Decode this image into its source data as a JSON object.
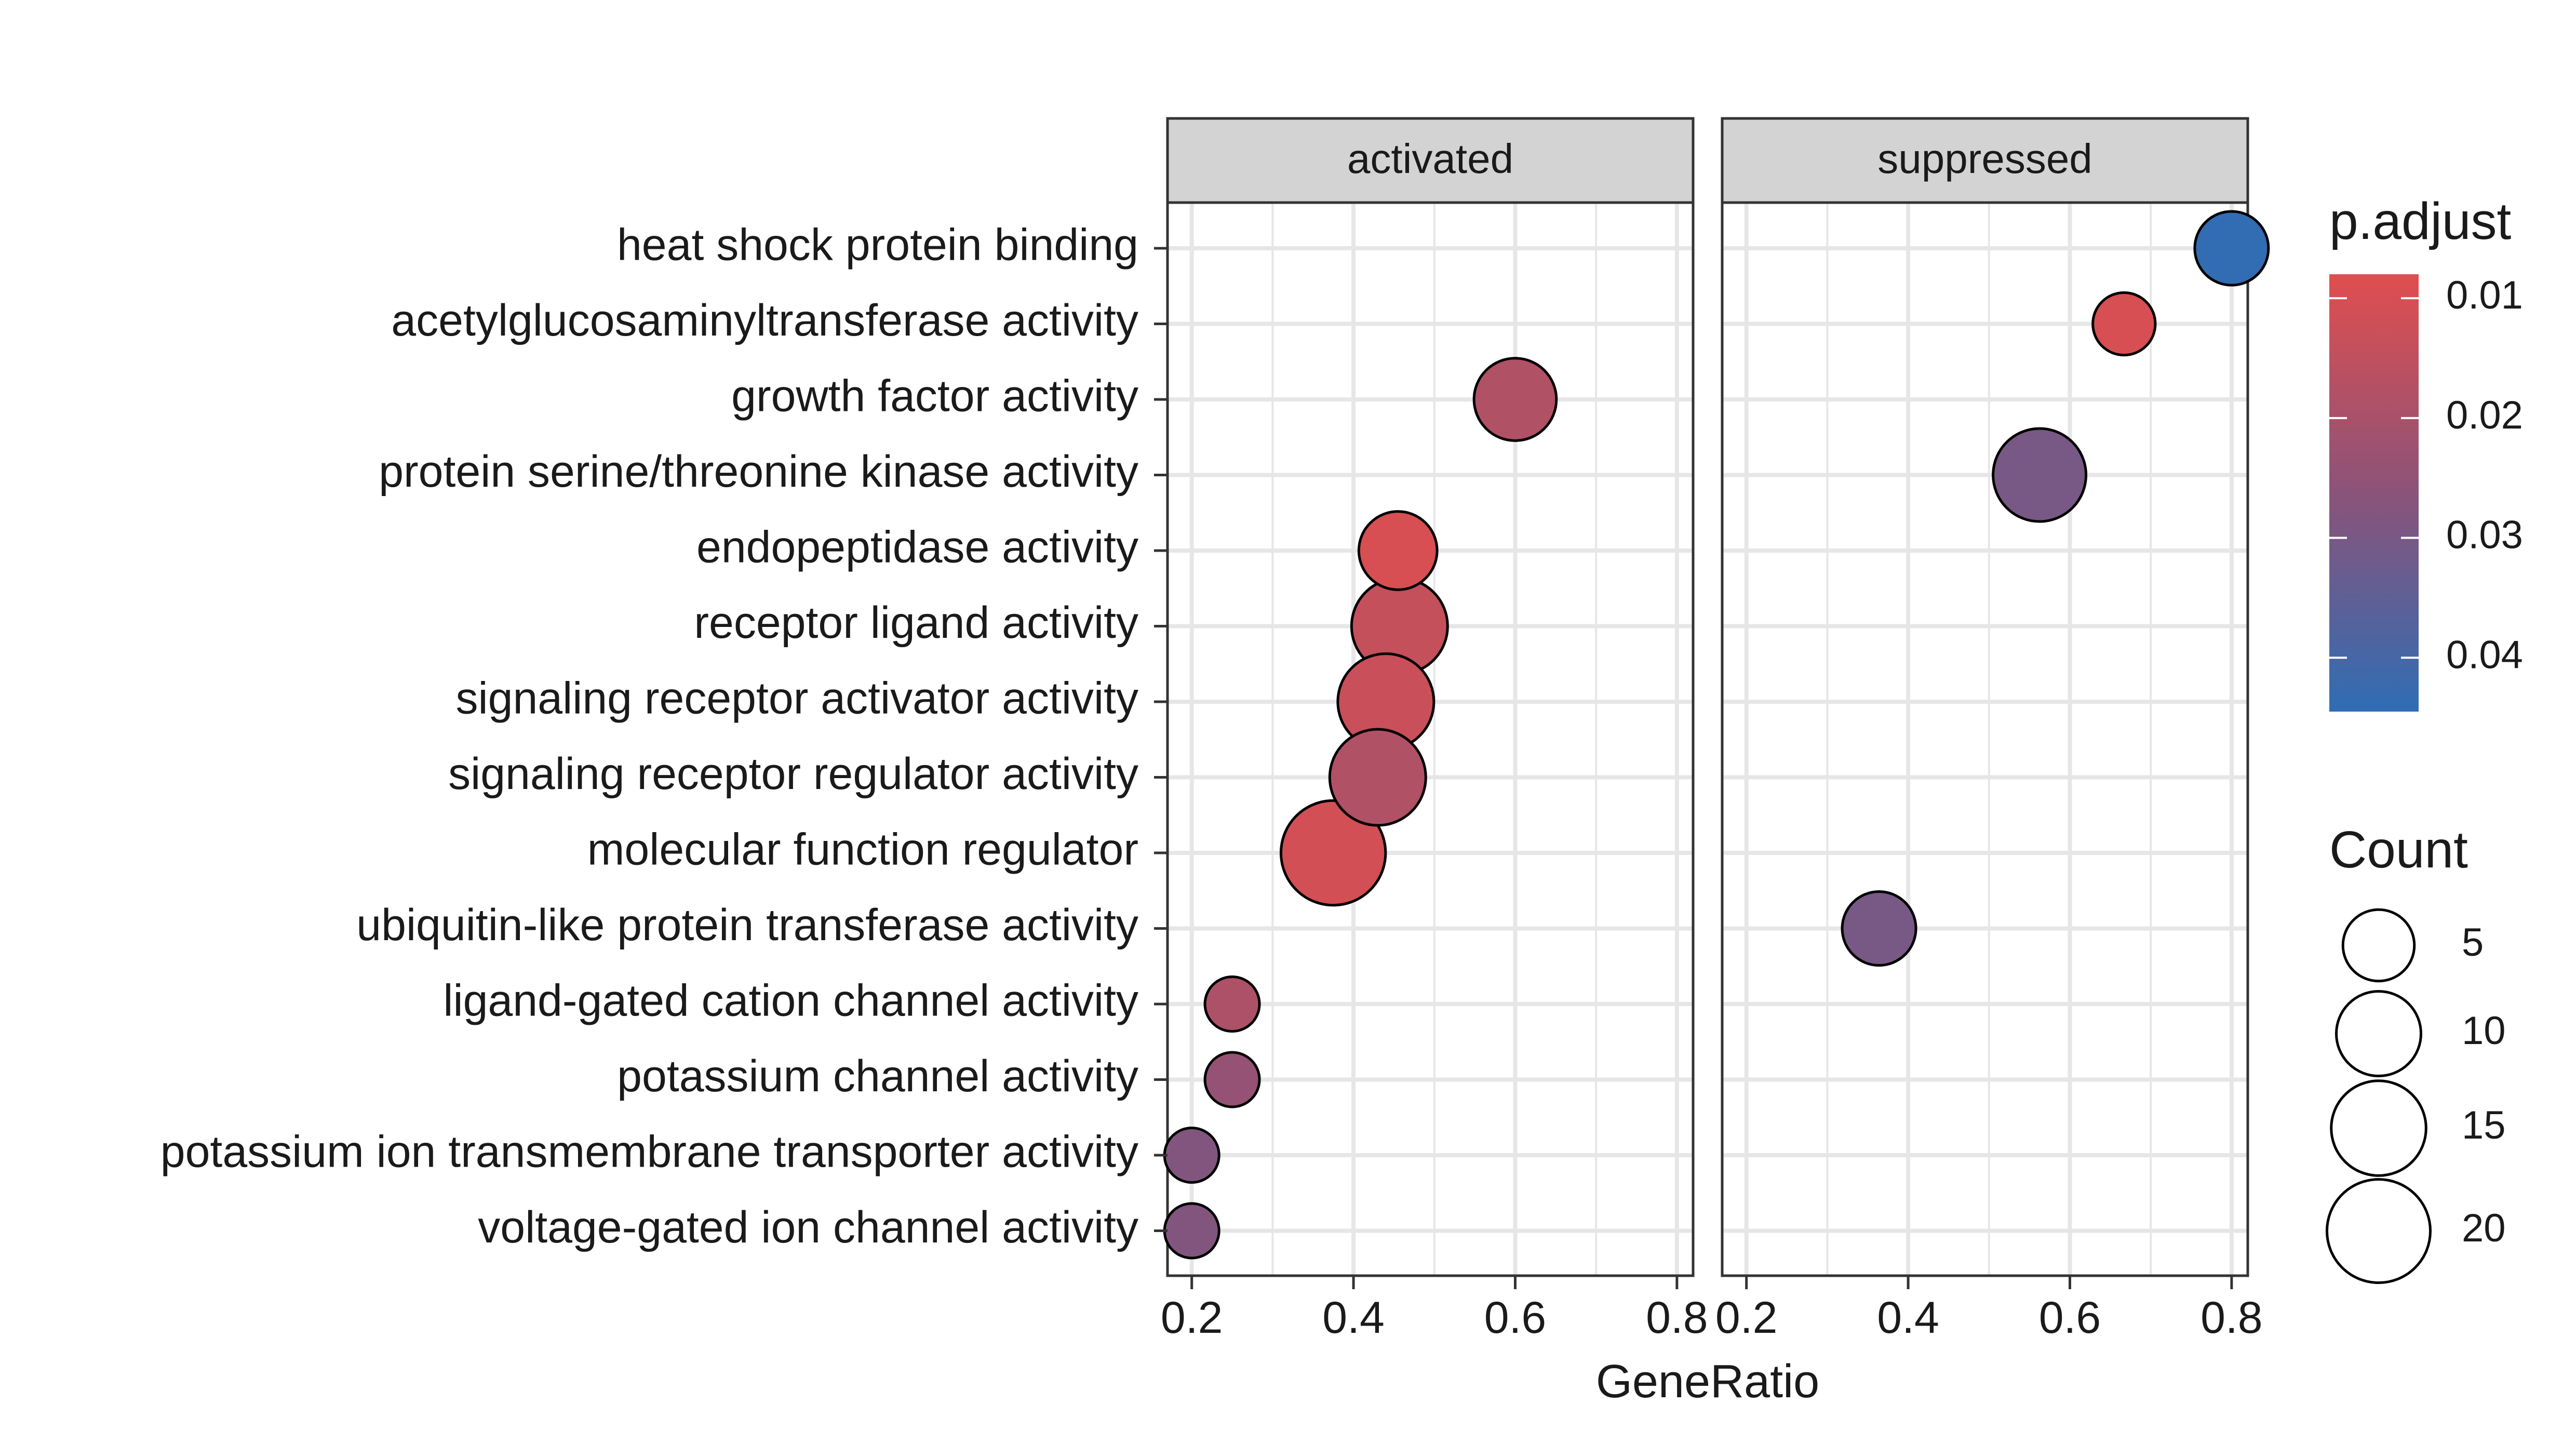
{
  "chart_data": {
    "type": "scatter",
    "facets": [
      "activated",
      "suppressed"
    ],
    "categories": [
      "heat shock protein binding",
      "acetylglucosaminyltransferase activity",
      "growth factor activity",
      "protein serine/threonine kinase activity",
      "endopeptidase activity",
      "receptor ligand activity",
      "signaling receptor activator activity",
      "signaling receptor regulator activity",
      "molecular function regulator",
      "ubiquitin-like protein transferase activity",
      "ligand-gated cation channel activity",
      "potassium channel activity",
      "potassium ion transmembrane transporter activity",
      "voltage-gated ion channel activity"
    ],
    "xlabel": "GeneRatio",
    "xlim": [
      0.17,
      0.82
    ],
    "xticks": [
      0.2,
      0.4,
      0.6,
      0.8
    ],
    "xtick_labels": [
      "0.2",
      "0.4",
      "0.6",
      "0.8"
    ],
    "points": [
      {
        "facet": "activated",
        "category": "growth factor activity",
        "x": 0.6,
        "count": 6,
        "p_adjust": 0.018
      },
      {
        "facet": "activated",
        "category": "endopeptidase activity",
        "x": 0.455,
        "count": 5,
        "p_adjust": 0.01
      },
      {
        "facet": "activated",
        "category": "receptor ligand activity",
        "x": 0.457,
        "count": 10,
        "p_adjust": 0.014
      },
      {
        "facet": "activated",
        "category": "signaling receptor activator activity",
        "x": 0.44,
        "count": 10,
        "p_adjust": 0.013
      },
      {
        "facet": "activated",
        "category": "signaling receptor regulator activity",
        "x": 0.43,
        "count": 10,
        "p_adjust": 0.018
      },
      {
        "facet": "activated",
        "category": "molecular function regulator",
        "x": 0.375,
        "count": 13,
        "p_adjust": 0.011
      },
      {
        "facet": "activated",
        "category": "ligand-gated cation channel activity",
        "x": 0.25,
        "count": 1,
        "p_adjust": 0.019
      },
      {
        "facet": "activated",
        "category": "potassium channel activity",
        "x": 0.25,
        "count": 1,
        "p_adjust": 0.024
      },
      {
        "facet": "activated",
        "category": "potassium ion transmembrane transporter activity",
        "x": 0.2,
        "count": 1,
        "p_adjust": 0.028
      },
      {
        "facet": "activated",
        "category": "voltage-gated ion channel activity",
        "x": 0.2,
        "count": 1,
        "p_adjust": 0.028
      },
      {
        "facet": "suppressed",
        "category": "heat shock protein binding",
        "x": 0.8,
        "count": 4,
        "p_adjust": 0.044
      },
      {
        "facet": "suppressed",
        "category": "acetylglucosaminyltransferase activity",
        "x": 0.667,
        "count": 2,
        "p_adjust": 0.01
      },
      {
        "facet": "suppressed",
        "category": "protein serine/threonine kinase activity",
        "x": 0.5625,
        "count": 9,
        "p_adjust": 0.03
      },
      {
        "facet": "suppressed",
        "category": "ubiquitin-like protein transferase activity",
        "x": 0.364,
        "count": 4,
        "p_adjust": 0.03
      }
    ],
    "color_legend": {
      "title": "p.adjust",
      "ticks": [
        0.01,
        0.02,
        0.03,
        0.04
      ],
      "tick_labels": [
        "0.01",
        "0.02",
        "0.03",
        "0.04"
      ],
      "range": [
        0.008,
        0.0445
      ],
      "low_color": "#e04e4e",
      "mid_color": "#8b5379",
      "high_color": "#2f6db4"
    },
    "size_legend": {
      "title": "Count",
      "values": [
        5,
        10,
        15,
        20
      ],
      "labels": [
        "5",
        "10",
        "15",
        "20"
      ]
    },
    "grid": true,
    "legend_position": "right",
    "panel_border_color": "#333333",
    "strip_fill": "#d3d3d3",
    "grid_color": "#e6e6e6"
  }
}
